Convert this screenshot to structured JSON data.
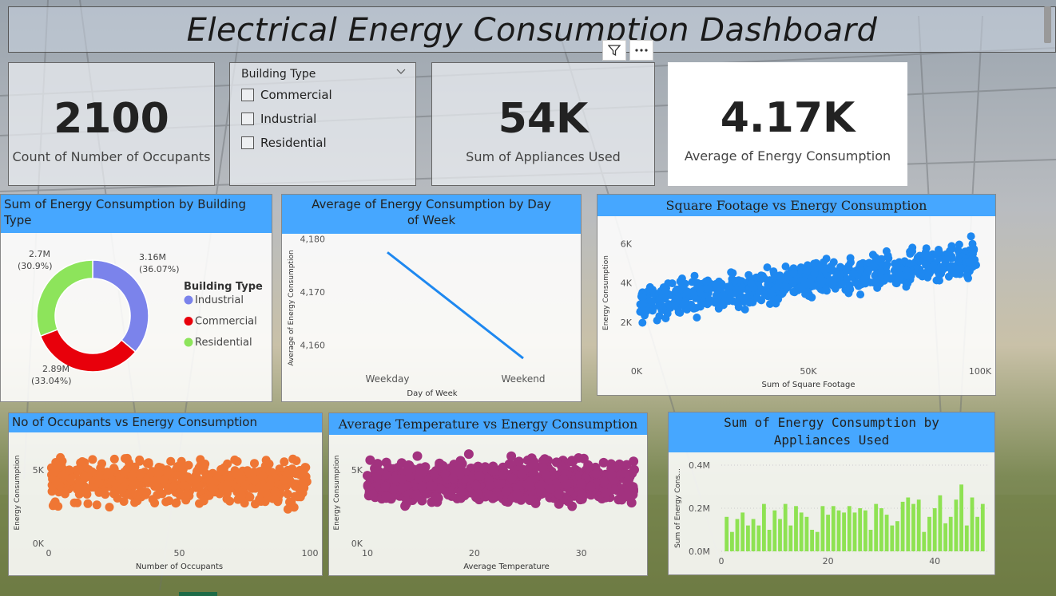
{
  "title": "Electrical Energy Consumption Dashboard",
  "kpis": [
    {
      "value": "2100",
      "label": "Count of Number of Occupants"
    },
    {
      "value": "54K",
      "label": "Sum of Appliances Used"
    },
    {
      "value": "4.17K",
      "label": "Average of Energy Consumption"
    }
  ],
  "slicer": {
    "title": "Building Type",
    "options": [
      "Commercial",
      "Industrial",
      "Residential"
    ]
  },
  "colors": {
    "accent": "#46a7ff",
    "industrial": "#7b83eb",
    "commercial": "#e8000b",
    "residential": "#8de45b",
    "scatter1": "#1e88f0",
    "scatter2": "#ef7634",
    "scatter3": "#a2327f",
    "bars": "#8ee252"
  },
  "chart_data": [
    {
      "id": "donut",
      "type": "pie",
      "title": "Sum of Energy Consumption by Building Type",
      "legend_title": "Building Type",
      "legend_placement": "right",
      "slices": [
        {
          "name": "Industrial",
          "value": 3.16,
          "label": "3.16M",
          "pct": "(36.07%)"
        },
        {
          "name": "Commercial",
          "value": 2.89,
          "label": "2.89M",
          "pct": "(33.04%)"
        },
        {
          "name": "Residential",
          "value": 2.7,
          "label": "2.7M",
          "pct": "(30.9%)"
        }
      ]
    },
    {
      "id": "line",
      "type": "line",
      "title": "Average of Energy Consumption by Day of Week",
      "xlabel": "Day of Week",
      "ylabel": "Average of Energy Consumption",
      "categories": [
        "Weekday",
        "Weekend"
      ],
      "values": [
        4177.5,
        4157.5
      ],
      "ylim": [
        4153,
        4181
      ],
      "yticks": [
        4160,
        4170,
        4180
      ],
      "ytick_labels": [
        "4,160",
        "4,170",
        "4,180"
      ]
    },
    {
      "id": "scatterSqft",
      "type": "scatter",
      "title": "Square Footage vs Energy Consumption",
      "xlabel": "Sum of Square Footage",
      "ylabel": "Energy Consumption",
      "xlim": [
        0,
        100000
      ],
      "ylim": [
        0,
        7000
      ],
      "xticks": [
        0,
        50000,
        100000
      ],
      "xtick_labels": [
        "0K",
        "50K",
        "100K"
      ],
      "yticks": [
        2000,
        4000,
        6000
      ],
      "ytick_labels": [
        "2K",
        "4K",
        "6K"
      ],
      "x_range": [
        1000,
        99000
      ],
      "trend": {
        "x0": 1000,
        "y0": 3000,
        "x1": 99000,
        "y1": 5300
      },
      "spread": 650
    },
    {
      "id": "scatterOcc",
      "type": "scatter",
      "title": "No of Occupants vs Energy Consumption",
      "xlabel": "Number of Occupants",
      "ylabel": "Energy Consumption",
      "xlim": [
        0,
        100
      ],
      "ylim": [
        0,
        6900
      ],
      "xticks": [
        0,
        50,
        100
      ],
      "xtick_labels": [
        "0",
        "50",
        "100"
      ],
      "yticks": [
        0,
        5000
      ],
      "ytick_labels": [
        "0K",
        "5K"
      ],
      "x_range": [
        1,
        99
      ],
      "trend": {
        "x0": 1,
        "y0": 4150,
        "x1": 99,
        "y1": 4200
      },
      "spread": 1050
    },
    {
      "id": "scatterTemp",
      "type": "scatter",
      "title": "Average Temperature vs Energy Consumption",
      "xlabel": "Average Temperature",
      "ylabel": "Energy Consumption",
      "xlim": [
        10,
        36
      ],
      "ylim": [
        0,
        6900
      ],
      "xticks": [
        10,
        20,
        30
      ],
      "xtick_labels": [
        "10",
        "20",
        "30"
      ],
      "yticks": [
        0,
        5000
      ],
      "ytick_labels": [
        "0K",
        "5K"
      ],
      "x_range": [
        10,
        35
      ],
      "trend": {
        "x0": 10,
        "y0": 4150,
        "x1": 35,
        "y1": 4200
      },
      "spread": 1050
    },
    {
      "id": "bars",
      "type": "bar",
      "title": "Sum of Energy Consumption by Appliances Used",
      "xlabel": "",
      "ylabel": "Sum of Energy Cons...",
      "xlim": [
        0,
        50
      ],
      "ylim": [
        0,
        0.4
      ],
      "xticks": [
        0,
        20,
        40
      ],
      "xtick_labels": [
        "0",
        "20",
        "40"
      ],
      "yticks": [
        0,
        0.2,
        0.4
      ],
      "ytick_labels": [
        "0.0M",
        "0.2M",
        "0.4M"
      ],
      "x": [
        1,
        2,
        3,
        4,
        5,
        6,
        7,
        8,
        9,
        10,
        11,
        12,
        13,
        14,
        15,
        16,
        17,
        18,
        19,
        20,
        21,
        22,
        23,
        24,
        25,
        26,
        27,
        28,
        29,
        30,
        31,
        32,
        33,
        34,
        35,
        36,
        37,
        38,
        39,
        40,
        41,
        42,
        43,
        44,
        45,
        46,
        47,
        48,
        49
      ],
      "values": [
        0.16,
        0.09,
        0.15,
        0.18,
        0.12,
        0.15,
        0.12,
        0.22,
        0.1,
        0.19,
        0.15,
        0.22,
        0.12,
        0.21,
        0.18,
        0.16,
        0.1,
        0.09,
        0.21,
        0.17,
        0.21,
        0.19,
        0.18,
        0.21,
        0.18,
        0.2,
        0.19,
        0.1,
        0.22,
        0.2,
        0.17,
        0.12,
        0.14,
        0.23,
        0.25,
        0.22,
        0.24,
        0.09,
        0.16,
        0.2,
        0.26,
        0.13,
        0.16,
        0.24,
        0.31,
        0.12,
        0.25,
        0.16,
        0.22
      ]
    }
  ]
}
